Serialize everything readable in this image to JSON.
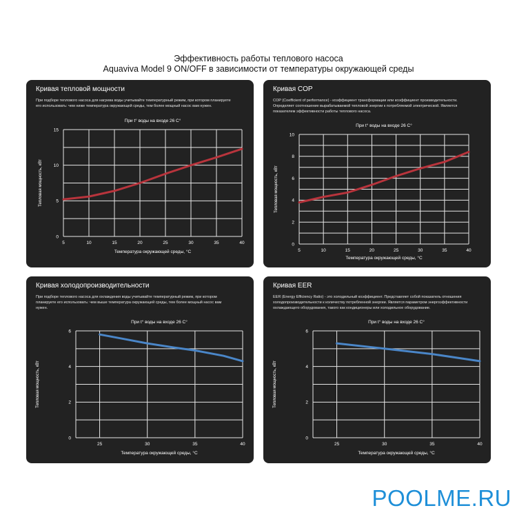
{
  "title": {
    "line1": "Эффективность работы теплового насоса",
    "line2": "Aquaviva Model 9 ON/OFF в зависимости от температуры окружающей среды"
  },
  "watermark": "POOLME.RU",
  "colors": {
    "panel_bg": "#222222",
    "grid": "#e8e8e8",
    "heating_line": "#b8343c",
    "cooling_line": "#4a86c8",
    "watermark": "#1e8fd8"
  },
  "panels": [
    {
      "title": "Кривая тепловой мощности",
      "desc": [
        "При подборе теплового насоса для нагрева воды учитывайте температурный режим, при котором планируете",
        "его использовать: чем ниже температура окружающей среды, тем более мощный насос вам нужен."
      ]
    },
    {
      "title": "Кривая COP",
      "desc": [
        "COP (Coefficient of performance) - коэффициент трансформации или коэффициент производительности.",
        "Определяет соотношение вырабатываемой тепловой энергии к потребляемой электрической. Является",
        "показателем эффективности работы теплового насоса."
      ]
    },
    {
      "title": "Кривая холодопроизводительности",
      "desc": [
        "При подборе теплового насоса для охлаждения воды учитывайте температурный режим, при котором",
        "планируете его использовать: чем выше температура окружающей среды, тем более мощный насос вам",
        "нужен."
      ]
    },
    {
      "title": "Кривая EER",
      "desc": [
        "EER (Energy Efficiency Ratio) - это холодильный коэффициент. Представляет собой показатель отношения",
        "холодопроизводительности к количеству потребленной энергии. Является параметром энергоэффективности",
        "охлаждающего оборудования, такого как кондиционеры или холодильное оборудование."
      ]
    }
  ],
  "chart_data": [
    {
      "type": "line",
      "title": "При t° воды на входе 26 C°",
      "xlabel": "Температура окружающей среды, °C",
      "ylabel": "Тепловая мощность, кВт",
      "xlim": [
        5,
        40
      ],
      "ylim": [
        0,
        15
      ],
      "xticks": [
        "5",
        "10",
        "15",
        "20",
        "25",
        "30",
        "35",
        "40"
      ],
      "yticks": [
        "0",
        "5",
        "10",
        "15"
      ],
      "grid": true,
      "color": "#b8343c",
      "x": [
        5,
        10,
        15,
        20,
        25,
        30,
        35,
        40
      ],
      "y": [
        5.2,
        5.6,
        6.4,
        7.5,
        8.8,
        10.0,
        11.1,
        12.3
      ]
    },
    {
      "type": "line",
      "title": "При t° воды на входе 26 C°",
      "xlabel": "Температура окружающей среды, °C",
      "ylabel": "Тепловая мощность, кВт",
      "xlim": [
        5,
        40
      ],
      "ylim": [
        0,
        10
      ],
      "xticks": [
        "5",
        "10",
        "15",
        "20",
        "25",
        "30",
        "35",
        "40"
      ],
      "yticks": [
        "0",
        "2",
        "4",
        "6",
        "8",
        "10"
      ],
      "grid": true,
      "color": "#b8343c",
      "x": [
        5,
        10,
        15,
        20,
        25,
        30,
        35,
        40
      ],
      "y": [
        3.8,
        4.3,
        4.7,
        5.4,
        6.2,
        6.9,
        7.5,
        8.4
      ]
    },
    {
      "type": "line",
      "title": "При t° воды на входе 26 C°",
      "xlabel": "Температура окружающей среды, °C",
      "ylabel": "Тепловая мощность, кВт",
      "xlim": [
        22.5,
        40
      ],
      "ylim": [
        0,
        6
      ],
      "xticks": [
        "25",
        "30",
        "35",
        "40"
      ],
      "yticks": [
        "0",
        "2",
        "4",
        "6"
      ],
      "grid": true,
      "color": "#4a86c8",
      "x": [
        25,
        27,
        30,
        33,
        35,
        38,
        40
      ],
      "y": [
        5.8,
        5.6,
        5.3,
        5.05,
        4.9,
        4.6,
        4.3
      ]
    },
    {
      "type": "line",
      "title": "При t° воды на входе 26 C°",
      "xlabel": "Температура окружающей среды, °C",
      "ylabel": "Тепловая мощность, кВт",
      "xlim": [
        22.5,
        40
      ],
      "ylim": [
        0,
        6
      ],
      "xticks": [
        "25",
        "30",
        "35",
        "40"
      ],
      "yticks": [
        "0",
        "2",
        "4",
        "6"
      ],
      "grid": true,
      "color": "#4a86c8",
      "x": [
        25,
        30,
        35,
        40
      ],
      "y": [
        5.3,
        5.0,
        4.7,
        4.3
      ]
    }
  ]
}
